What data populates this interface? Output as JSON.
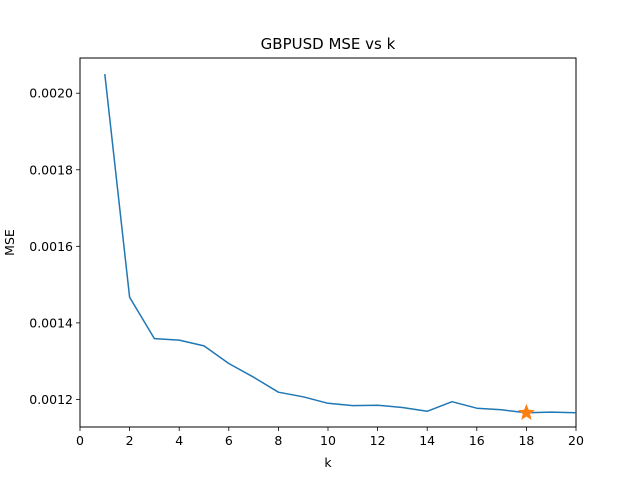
{
  "chart_data": {
    "type": "line",
    "title": "GBPUSD MSE vs k",
    "xlabel": "k",
    "ylabel": "MSE",
    "xlim": [
      0,
      20
    ],
    "ylim": [
      0.001128,
      0.002092
    ],
    "x_ticks": [
      0,
      2,
      4,
      6,
      8,
      10,
      12,
      14,
      16,
      18,
      20
    ],
    "x_tick_labels": [
      "0",
      "2",
      "4",
      "6",
      "8",
      "10",
      "12",
      "14",
      "16",
      "18",
      "20"
    ],
    "y_ticks": [
      0.0012,
      0.0014,
      0.0016,
      0.0018,
      0.002
    ],
    "y_tick_labels": [
      "0.0012",
      "0.0014",
      "0.0016",
      "0.0018",
      "0.0020"
    ],
    "grid": false,
    "series": [
      {
        "color": "#1f77b4",
        "x": [
          1,
          2,
          3,
          4,
          5,
          6,
          7,
          8,
          9,
          10,
          11,
          12,
          13,
          14,
          15,
          16,
          17,
          18,
          19,
          20
        ],
        "y": [
          0.00205,
          0.001467,
          0.001359,
          0.001355,
          0.00134,
          0.001294,
          0.001258,
          0.001219,
          0.001207,
          0.00119,
          0.001184,
          0.001185,
          0.001179,
          0.001169,
          0.001194,
          0.001177,
          0.001173,
          0.001165,
          0.001167,
          0.001165
        ]
      }
    ],
    "marker": {
      "shape": "star",
      "color": "#ff7f0e",
      "x": 18,
      "y": 0.001165
    }
  }
}
